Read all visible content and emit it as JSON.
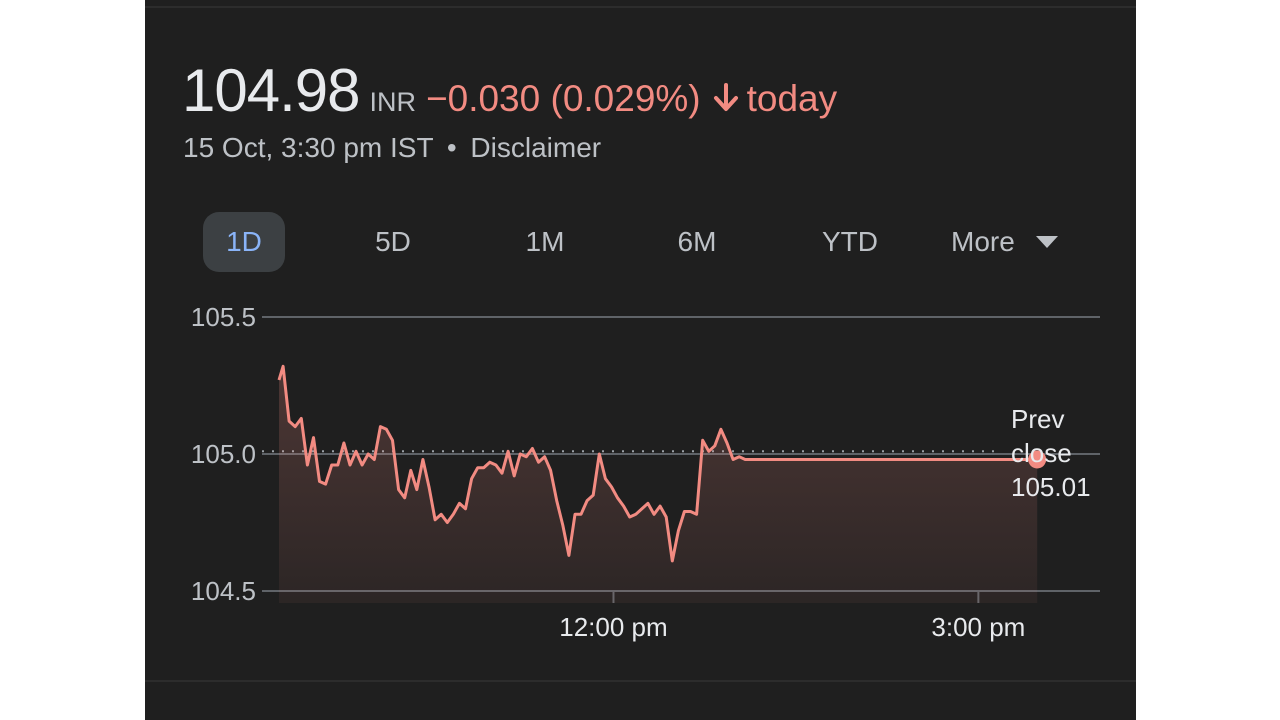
{
  "quote": {
    "price": "104.98",
    "currency": "INR",
    "change": "−0.030 (0.029%)",
    "period": "today",
    "timestamp": "15 Oct, 3:30 pm IST",
    "separator": "•",
    "disclaimer": "Disclaimer",
    "direction": "down"
  },
  "tabs": [
    {
      "label": "1D",
      "active": true
    },
    {
      "label": "5D",
      "active": false
    },
    {
      "label": "1M",
      "active": false
    },
    {
      "label": "6M",
      "active": false
    },
    {
      "label": "YTD",
      "active": false
    },
    {
      "label": "More",
      "active": false,
      "icon": "caret-down-icon"
    }
  ],
  "colors": {
    "background": "#1f1f1f",
    "line": "#f28b82",
    "text": "#e8eaed",
    "muted": "#bdc1c6",
    "active_tab": "#8ab4f8",
    "grid": "#5f6368"
  },
  "chart_data": {
    "type": "line",
    "ylim": [
      104.5,
      105.5
    ],
    "yticks": [
      104.5,
      105.0,
      105.5
    ],
    "ytick_labels": [
      "104.5",
      "105.0",
      "105.5"
    ],
    "xlim": [
      "09:15",
      "15:30"
    ],
    "x_end_window": "16:00",
    "xtick_values": [
      "12:00",
      "15:00"
    ],
    "xtick_labels": [
      "12:00 pm",
      "3:00 pm"
    ],
    "grid": true,
    "previous_close": 105.01,
    "annotation_lines": [
      "Prev",
      "close",
      "105.01"
    ],
    "series": [
      {
        "x": [
          "09:15",
          "09:17",
          "09:20",
          "09:23",
          "09:26",
          "09:29",
          "09:32",
          "09:35",
          "09:38",
          "09:41",
          "09:44",
          "09:47",
          "09:50",
          "09:53",
          "09:56",
          "09:59",
          "10:02",
          "10:05",
          "10:08",
          "10:11",
          "10:14",
          "10:17",
          "10:20",
          "10:23",
          "10:26",
          "10:29",
          "10:32",
          "10:35",
          "10:38",
          "10:41",
          "10:44",
          "10:47",
          "10:50",
          "10:53",
          "10:56",
          "10:59",
          "11:02",
          "11:05",
          "11:08",
          "11:11",
          "11:14",
          "11:17",
          "11:20",
          "11:23",
          "11:26",
          "11:29",
          "11:32",
          "11:35",
          "11:38",
          "11:41",
          "11:44",
          "11:47",
          "11:50",
          "11:53",
          "11:56",
          "11:59",
          "12:02",
          "12:05",
          "12:08",
          "12:11",
          "12:14",
          "12:17",
          "12:20",
          "12:23",
          "12:26",
          "12:29",
          "12:32",
          "12:35",
          "12:38",
          "12:41",
          "12:44",
          "12:47",
          "12:50",
          "12:53",
          "12:56",
          "12:59",
          "13:02",
          "13:05",
          "13:08",
          "13:11",
          "13:14",
          "13:17",
          "13:20",
          "13:23",
          "13:26",
          "13:29",
          "13:32",
          "13:35",
          "13:38",
          "13:41",
          "13:44",
          "13:47",
          "13:50",
          "13:53",
          "13:56",
          "13:59",
          "14:02",
          "14:05",
          "14:08",
          "14:11",
          "14:14",
          "14:17",
          "14:20",
          "14:23",
          "14:26",
          "14:29",
          "14:32",
          "14:35",
          "14:38",
          "14:41",
          "14:44",
          "14:47",
          "14:50",
          "14:53",
          "14:56",
          "14:59",
          "15:02",
          "15:05",
          "15:08",
          "15:11",
          "15:14",
          "15:17",
          "15:20",
          "15:23",
          "15:26",
          "15:29"
        ],
        "y": [
          105.27,
          105.32,
          105.12,
          105.1,
          105.13,
          104.96,
          105.06,
          104.9,
          104.89,
          104.96,
          104.96,
          105.04,
          104.96,
          105.01,
          104.96,
          105.0,
          104.98,
          105.1,
          105.09,
          105.05,
          104.87,
          104.84,
          104.94,
          104.87,
          104.98,
          104.88,
          104.76,
          104.78,
          104.75,
          104.78,
          104.82,
          104.8,
          104.91,
          104.95,
          104.95,
          104.97,
          104.96,
          104.93,
          105.01,
          104.92,
          105.0,
          104.99,
          105.02,
          104.97,
          104.99,
          104.94,
          104.83,
          104.74,
          104.63,
          104.78,
          104.78,
          104.83,
          104.85,
          105.0,
          104.91,
          104.88,
          104.84,
          104.81,
          104.77,
          104.78,
          104.8,
          104.82,
          104.78,
          104.81,
          104.77,
          104.61,
          104.72,
          104.79,
          104.79,
          104.78,
          105.05,
          105.01,
          105.03,
          105.09,
          105.04,
          104.98,
          104.99,
          104.98,
          104.98,
          104.98,
          104.98,
          104.98,
          104.98,
          104.98,
          104.98,
          104.98,
          104.98,
          104.98,
          104.98,
          104.98,
          104.98,
          104.98,
          104.98,
          104.98,
          104.98,
          104.98,
          104.98,
          104.98,
          104.98,
          104.98,
          104.98,
          104.98,
          104.98,
          104.98,
          104.98,
          104.98,
          104.98,
          104.98,
          104.98,
          104.98,
          104.98,
          104.98,
          104.98,
          104.98,
          104.98,
          104.98,
          104.98,
          104.98,
          104.98,
          104.98,
          104.98,
          104.98,
          104.98,
          104.98,
          104.98,
          104.98
        ]
      }
    ]
  }
}
